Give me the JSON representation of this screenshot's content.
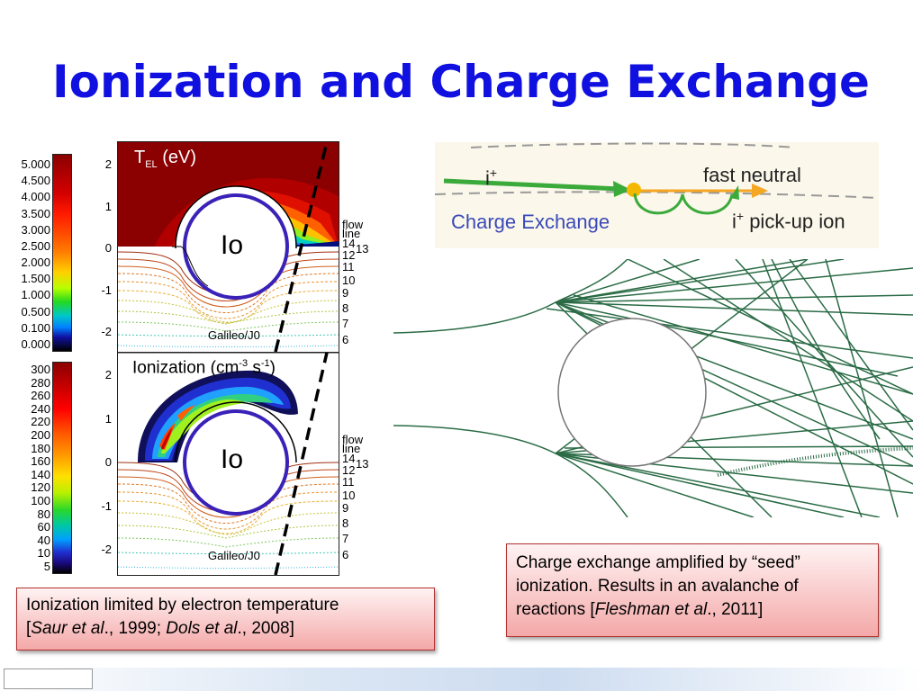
{
  "title": "Ionization and Charge Exchange",
  "top_panel": {
    "label_main": "T",
    "label_sub": "EL",
    "label_unit": "(eV)",
    "colorbar_ticks": [
      "5.000",
      "4.500",
      "4.000",
      "3.500",
      "3.000",
      "2.500",
      "2.000",
      "1.500",
      "1.000",
      "0.500",
      "0.100",
      "0.000"
    ],
    "y_ticks": [
      "2",
      "1",
      "0",
      "-1",
      "-2"
    ],
    "io_label": "Io",
    "flow_label_1": "flow",
    "flow_label_2": "line",
    "flow_numbers": [
      "14",
      "13",
      "12",
      "11",
      "10",
      "9",
      "8",
      "7",
      "6"
    ],
    "trajectory_label": "Galileo/J0"
  },
  "bottom_panel": {
    "label_main": "Ionization (cm",
    "label_exp1": "-3",
    "label_mid": " s",
    "label_exp2": "-1",
    "label_end": ")",
    "colorbar_ticks": [
      "300",
      "280",
      "260",
      "240",
      "220",
      "200",
      "180",
      "160",
      "140",
      "120",
      "100",
      "80",
      "60",
      "40",
      "10",
      "5"
    ],
    "y_ticks": [
      "2",
      "1",
      "0",
      "-1",
      "-2"
    ],
    "io_label": "Io",
    "flow_label_1": "flow",
    "flow_label_2": "line",
    "flow_numbers": [
      "14",
      "13",
      "12",
      "11",
      "10",
      "9",
      "8",
      "7",
      "6"
    ],
    "trajectory_label": "Galileo/J0"
  },
  "charge_exchange": {
    "ion_in": "i",
    "ion_in_sup": "+",
    "fast_neutral": "fast neutral",
    "title": "Charge Exchange",
    "pickup_ion": "i",
    "pickup_ion_sup": "+",
    "pickup_text": " pick-up ion"
  },
  "caption_left": {
    "line1": "Ionization limited by electron temperature",
    "open": "[",
    "ref1_author": "Saur et al",
    "ref1_year": "., 1999; ",
    "ref2_author": "Dols et al",
    "ref2_year": "., 2008]"
  },
  "caption_right": {
    "line1": "Charge exchange amplified by “seed”",
    "line2": "ionization.  Results in an avalanche of",
    "line3_start": "reactions [",
    "ref_author": "Fleshman et al",
    "ref_year": "., 2011]"
  },
  "colors": {
    "title": "#1010e0",
    "moon_outline": "#3a22b8",
    "arrow_green": "#3aaa3a",
    "arrow_orange": "#f5a623",
    "dashed_line": "#000000",
    "trajectory_lines": "#2a6b45"
  }
}
